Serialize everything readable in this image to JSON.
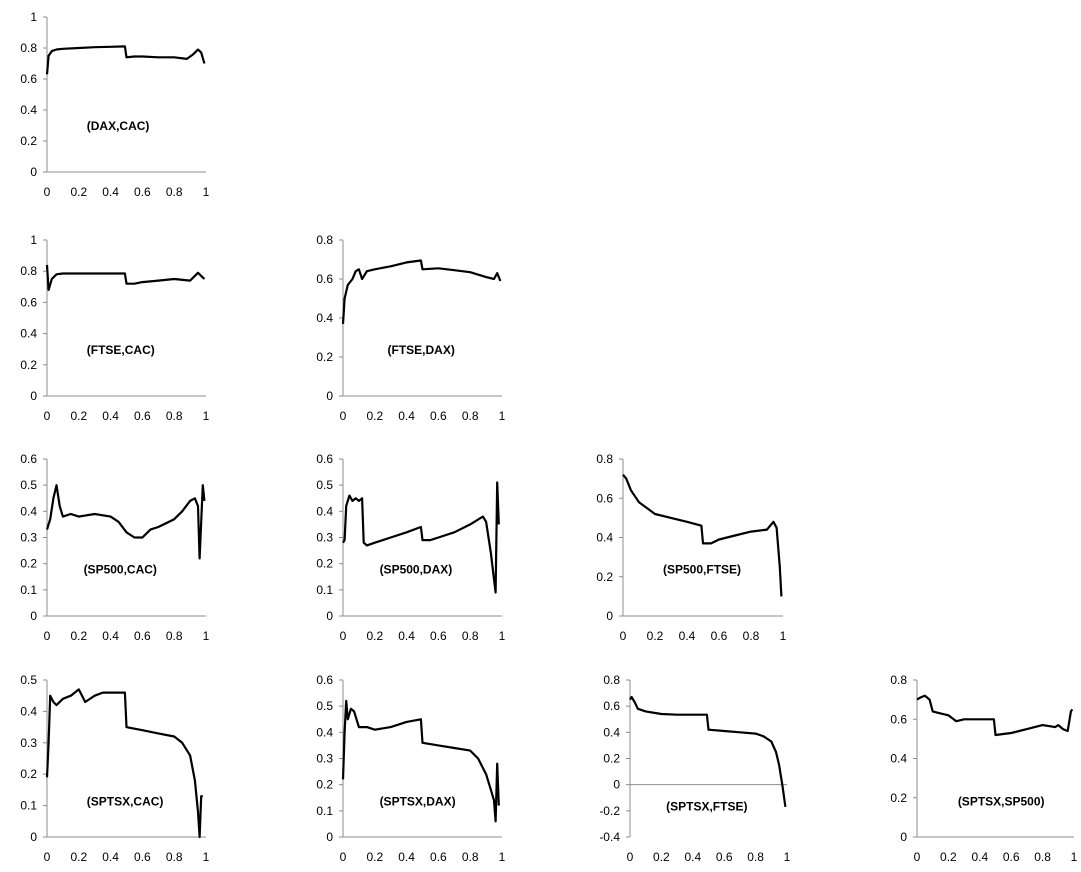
{
  "chart_data": [
    {
      "type": "line",
      "title": "(DAX,CAC)",
      "xlim": [
        0,
        1
      ],
      "ylim": [
        0,
        1
      ],
      "yticks": [
        "0",
        "0.2",
        "0.4",
        "0.6",
        "0.8",
        "1"
      ],
      "xticks": [
        "0",
        "0.2",
        "0.4",
        "0.6",
        "0.8",
        "1"
      ],
      "series": [
        {
          "x": [
            0.0,
            0.01,
            0.03,
            0.06,
            0.1,
            0.2,
            0.3,
            0.4,
            0.49,
            0.5,
            0.55,
            0.6,
            0.7,
            0.8,
            0.88,
            0.92,
            0.95,
            0.97,
            0.99
          ],
          "y": [
            0.63,
            0.75,
            0.78,
            0.79,
            0.795,
            0.8,
            0.805,
            0.808,
            0.81,
            0.74,
            0.745,
            0.745,
            0.74,
            0.74,
            0.73,
            0.76,
            0.79,
            0.77,
            0.7
          ]
        }
      ]
    },
    {
      "type": "line",
      "title": "(FTSE,CAC)",
      "xlim": [
        0,
        1
      ],
      "ylim": [
        0,
        1
      ],
      "yticks": [
        "0",
        "0.2",
        "0.4",
        "0.6",
        "0.8",
        "1"
      ],
      "xticks": [
        "0",
        "0.2",
        "0.4",
        "0.6",
        "0.8",
        "1"
      ],
      "series": [
        {
          "x": [
            0.0,
            0.01,
            0.03,
            0.06,
            0.1,
            0.2,
            0.3,
            0.4,
            0.49,
            0.5,
            0.55,
            0.6,
            0.7,
            0.8,
            0.9,
            0.95,
            0.97,
            0.99
          ],
          "y": [
            0.84,
            0.68,
            0.75,
            0.78,
            0.785,
            0.785,
            0.785,
            0.785,
            0.785,
            0.72,
            0.72,
            0.73,
            0.74,
            0.75,
            0.74,
            0.79,
            0.77,
            0.75
          ]
        }
      ]
    },
    {
      "type": "line",
      "title": "(FTSE,DAX)",
      "xlim": [
        0,
        1
      ],
      "ylim": [
        0,
        0.8
      ],
      "yticks": [
        "0",
        "0.2",
        "0.4",
        "0.6",
        "0.8"
      ],
      "xticks": [
        "0",
        "0.2",
        "0.4",
        "0.6",
        "0.8",
        "1"
      ],
      "series": [
        {
          "x": [
            0.0,
            0.01,
            0.03,
            0.06,
            0.08,
            0.1,
            0.12,
            0.15,
            0.2,
            0.3,
            0.4,
            0.49,
            0.5,
            0.6,
            0.7,
            0.8,
            0.9,
            0.95,
            0.97,
            0.99
          ],
          "y": [
            0.37,
            0.5,
            0.57,
            0.6,
            0.64,
            0.65,
            0.6,
            0.64,
            0.65,
            0.665,
            0.685,
            0.695,
            0.65,
            0.655,
            0.645,
            0.635,
            0.61,
            0.6,
            0.63,
            0.59
          ]
        }
      ]
    },
    {
      "type": "line",
      "title": "(SP500,CAC)",
      "xlim": [
        0,
        1
      ],
      "ylim": [
        0,
        0.6
      ],
      "yticks": [
        "0",
        "0.1",
        "0.2",
        "0.3",
        "0.4",
        "0.5",
        "0.6"
      ],
      "xticks": [
        "0",
        "0.2",
        "0.4",
        "0.6",
        "0.8",
        "1"
      ],
      "series": [
        {
          "x": [
            0.0,
            0.02,
            0.04,
            0.06,
            0.08,
            0.1,
            0.15,
            0.2,
            0.3,
            0.4,
            0.45,
            0.5,
            0.55,
            0.6,
            0.65,
            0.7,
            0.8,
            0.85,
            0.9,
            0.93,
            0.95,
            0.96,
            0.98,
            0.99
          ],
          "y": [
            0.33,
            0.37,
            0.45,
            0.5,
            0.42,
            0.38,
            0.39,
            0.38,
            0.39,
            0.38,
            0.36,
            0.32,
            0.3,
            0.3,
            0.33,
            0.34,
            0.37,
            0.4,
            0.44,
            0.45,
            0.42,
            0.22,
            0.5,
            0.44
          ]
        }
      ]
    },
    {
      "type": "line",
      "title": "(SP500,DAX)",
      "xlim": [
        0,
        1
      ],
      "ylim": [
        0,
        0.6
      ],
      "yticks": [
        "0",
        "0.1",
        "0.2",
        "0.3",
        "0.4",
        "0.5",
        "0.6"
      ],
      "xticks": [
        "0",
        "0.2",
        "0.4",
        "0.6",
        "0.8",
        "1"
      ],
      "series": [
        {
          "x": [
            0.0,
            0.01,
            0.02,
            0.04,
            0.06,
            0.08,
            0.1,
            0.12,
            0.13,
            0.15,
            0.2,
            0.3,
            0.4,
            0.49,
            0.5,
            0.55,
            0.6,
            0.7,
            0.8,
            0.88,
            0.9,
            0.93,
            0.95,
            0.96,
            0.97,
            0.98
          ],
          "y": [
            0.28,
            0.29,
            0.42,
            0.46,
            0.44,
            0.45,
            0.44,
            0.45,
            0.28,
            0.27,
            0.28,
            0.3,
            0.32,
            0.34,
            0.29,
            0.29,
            0.3,
            0.32,
            0.35,
            0.38,
            0.36,
            0.24,
            0.14,
            0.09,
            0.51,
            0.35
          ]
        }
      ]
    },
    {
      "type": "line",
      "title": "(SP500,FTSE)",
      "xlim": [
        0,
        1
      ],
      "ylim": [
        0,
        0.8
      ],
      "yticks": [
        "0",
        "0.2",
        "0.4",
        "0.6",
        "0.8"
      ],
      "xticks": [
        "0",
        "0.2",
        "0.4",
        "0.6",
        "0.8",
        "1"
      ],
      "series": [
        {
          "x": [
            0.0,
            0.02,
            0.05,
            0.1,
            0.15,
            0.2,
            0.3,
            0.4,
            0.49,
            0.5,
            0.55,
            0.6,
            0.7,
            0.8,
            0.9,
            0.94,
            0.96,
            0.98,
            0.99
          ],
          "y": [
            0.72,
            0.7,
            0.64,
            0.58,
            0.55,
            0.52,
            0.5,
            0.48,
            0.46,
            0.37,
            0.37,
            0.39,
            0.41,
            0.43,
            0.44,
            0.48,
            0.45,
            0.25,
            0.1
          ]
        }
      ]
    },
    {
      "type": "line",
      "title": "(SPTSX,CAC)",
      "xlim": [
        0,
        1
      ],
      "ylim": [
        0,
        0.5
      ],
      "yticks": [
        "0",
        "0.1",
        "0.2",
        "0.3",
        "0.4",
        "0.5"
      ],
      "xticks": [
        "0",
        "0.2",
        "0.4",
        "0.6",
        "0.8",
        "1"
      ],
      "series": [
        {
          "x": [
            0.0,
            0.01,
            0.02,
            0.04,
            0.06,
            0.1,
            0.15,
            0.2,
            0.24,
            0.3,
            0.35,
            0.4,
            0.49,
            0.5,
            0.6,
            0.7,
            0.8,
            0.85,
            0.9,
            0.93,
            0.95,
            0.96,
            0.97,
            0.98
          ],
          "y": [
            0.19,
            0.3,
            0.45,
            0.43,
            0.42,
            0.44,
            0.45,
            0.47,
            0.43,
            0.45,
            0.46,
            0.46,
            0.46,
            0.35,
            0.34,
            0.33,
            0.32,
            0.3,
            0.26,
            0.18,
            0.08,
            0.0,
            0.13,
            0.13
          ]
        }
      ]
    },
    {
      "type": "line",
      "title": "(SPTSX,DAX)",
      "xlim": [
        0,
        1
      ],
      "ylim": [
        0,
        0.6
      ],
      "yticks": [
        "0",
        "0.1",
        "0.2",
        "0.3",
        "0.4",
        "0.5",
        "0.6"
      ],
      "xticks": [
        "0",
        "0.2",
        "0.4",
        "0.6",
        "0.8",
        "1"
      ],
      "series": [
        {
          "x": [
            0.0,
            0.01,
            0.02,
            0.03,
            0.05,
            0.07,
            0.1,
            0.15,
            0.2,
            0.3,
            0.4,
            0.49,
            0.5,
            0.6,
            0.7,
            0.8,
            0.85,
            0.9,
            0.93,
            0.95,
            0.96,
            0.97,
            0.98
          ],
          "y": [
            0.22,
            0.4,
            0.52,
            0.45,
            0.49,
            0.48,
            0.42,
            0.42,
            0.41,
            0.42,
            0.44,
            0.45,
            0.36,
            0.35,
            0.34,
            0.33,
            0.3,
            0.24,
            0.18,
            0.14,
            0.06,
            0.28,
            0.12
          ]
        }
      ]
    },
    {
      "type": "line",
      "title": "(SPTSX,FTSE)",
      "xlim": [
        0,
        1
      ],
      "ylim": [
        -0.4,
        0.8
      ],
      "yticks": [
        "-0.4",
        "-0.2",
        "0",
        "0.2",
        "0.4",
        "0.6",
        "0.8"
      ],
      "xticks": [
        "0",
        "0.2",
        "0.4",
        "0.6",
        "0.8",
        "1"
      ],
      "series": [
        {
          "x": [
            0.0,
            0.01,
            0.03,
            0.05,
            0.1,
            0.2,
            0.3,
            0.4,
            0.49,
            0.5,
            0.6,
            0.7,
            0.8,
            0.85,
            0.9,
            0.93,
            0.95,
            0.97,
            0.99
          ],
          "y": [
            0.65,
            0.67,
            0.63,
            0.58,
            0.56,
            0.54,
            0.535,
            0.535,
            0.535,
            0.42,
            0.41,
            0.4,
            0.39,
            0.37,
            0.33,
            0.25,
            0.15,
            0.0,
            -0.17
          ]
        }
      ]
    },
    {
      "type": "line",
      "title": "(SPTSX,SP500)",
      "xlim": [
        0,
        1
      ],
      "ylim": [
        0,
        0.8
      ],
      "yticks": [
        "0",
        "0.2",
        "0.4",
        "0.6",
        "0.8"
      ],
      "xticks": [
        "0",
        "0.2",
        "0.4",
        "0.6",
        "0.8",
        "1"
      ],
      "series": [
        {
          "x": [
            0.0,
            0.02,
            0.05,
            0.08,
            0.1,
            0.15,
            0.2,
            0.25,
            0.3,
            0.4,
            0.49,
            0.5,
            0.6,
            0.7,
            0.8,
            0.88,
            0.9,
            0.93,
            0.96,
            0.98,
            0.99
          ],
          "y": [
            0.7,
            0.71,
            0.72,
            0.7,
            0.64,
            0.63,
            0.62,
            0.59,
            0.6,
            0.6,
            0.6,
            0.52,
            0.53,
            0.55,
            0.57,
            0.56,
            0.57,
            0.55,
            0.54,
            0.64,
            0.65
          ]
        }
      ]
    }
  ]
}
